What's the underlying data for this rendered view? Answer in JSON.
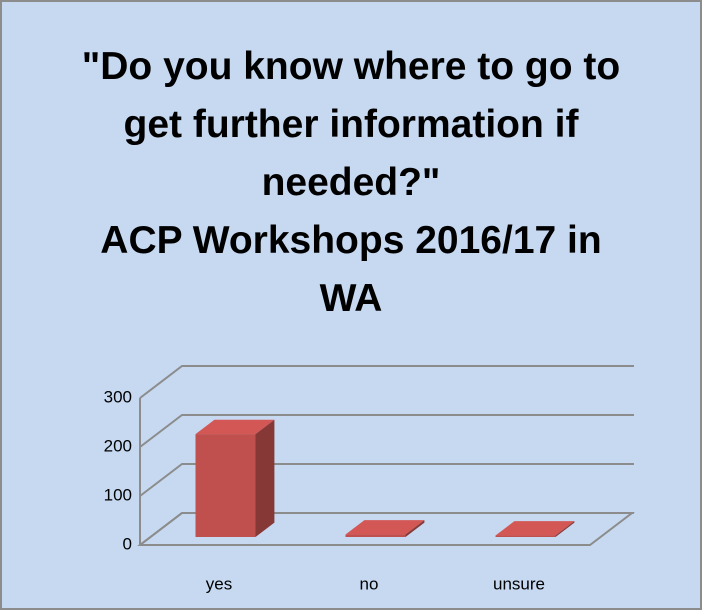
{
  "chart_data": {
    "type": "bar3d",
    "title": "\"Do you know where to go to get further information if needed?\"",
    "subtitle": "ACP Workshops 2016/17 in WA",
    "categories": [
      "yes",
      "no",
      "unsure"
    ],
    "values": [
      210,
      5,
      3
    ],
    "color": "#c0504d",
    "ylim": [
      0,
      300
    ],
    "yticks": [
      0,
      100,
      200,
      300
    ],
    "grid": true
  }
}
